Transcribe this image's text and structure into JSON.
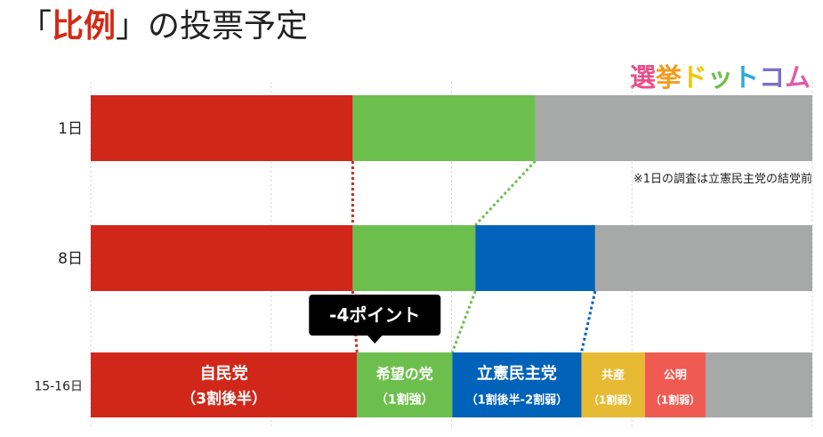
{
  "header": {
    "title_open": "「",
    "title_accent": "比例",
    "title_close": "」の投票予定",
    "logo_chars": [
      {
        "text": "選",
        "color": "#e8508a"
      },
      {
        "text": "挙",
        "color": "#f59a1c"
      },
      {
        "text": "ド",
        "color": "#f2c500"
      },
      {
        "text": "ッ",
        "color": "#6cc04a"
      },
      {
        "text": "ト",
        "color": "#2aa9e0"
      },
      {
        "text": "コ",
        "color": "#7b6fd0"
      },
      {
        "text": "ム",
        "color": "#e25ba9"
      }
    ],
    "note": "※1日の調査は立憲民主党の結党前"
  },
  "chart_data": {
    "type": "bar",
    "orientation": "horizontal",
    "stacked": true,
    "normalized": true,
    "categories": [
      "1日",
      "8日",
      "15-16日"
    ],
    "grid": true,
    "series": [
      {
        "key": "ldp",
        "color": "#d0271a",
        "values": [
          36.3,
          36.3,
          36.9
        ],
        "labels": [
          null,
          null,
          {
            "line1": "自民党",
            "line2": "（3割後半）"
          }
        ]
      },
      {
        "key": "kibou",
        "color": "#6dbf4d",
        "values": [
          25.3,
          17.0,
          13.2
        ],
        "labels": [
          null,
          null,
          {
            "line1": "希望の党",
            "line2": "（1割強）"
          }
        ]
      },
      {
        "key": "cdp",
        "color": "#0062b9",
        "values": [
          0,
          16.6,
          17.9
        ],
        "labels": [
          null,
          null,
          {
            "line1": "立憲民主党",
            "line2": "（1割後半-2割弱）"
          }
        ]
      },
      {
        "key": "jcp",
        "color": "#e6bb33",
        "values": [
          0,
          0,
          8.8
        ],
        "labels": [
          null,
          null,
          {
            "line1": "共産",
            "line2": "（1割弱）"
          }
        ]
      },
      {
        "key": "komei",
        "color": "#ef5a51",
        "values": [
          0,
          0,
          8.4
        ],
        "labels": [
          null,
          null,
          {
            "line1": "公明",
            "line2": "（1割弱）"
          }
        ]
      },
      {
        "key": "other",
        "color": "#a7a9a8",
        "values": [
          38.4,
          30.1,
          14.8
        ],
        "labels": [
          null,
          null,
          null
        ]
      }
    ],
    "annotation": {
      "text": "-4ポイント",
      "series": "kibou",
      "category": "15-16日"
    },
    "connectors": [
      {
        "from": "1日",
        "to": "8日",
        "after_series": "ldp",
        "color": "#d0271a"
      },
      {
        "from": "8日",
        "to": "15-16日",
        "after_series": "ldp",
        "color": "#d0271a"
      },
      {
        "from": "1日",
        "to": "8日",
        "after_series": "kibou",
        "color": "#6dbf4d"
      },
      {
        "from": "8日",
        "to": "15-16日",
        "after_series": "kibou",
        "color": "#6dbf4d"
      },
      {
        "from": "8日",
        "to": "15-16日",
        "after_series": "cdp",
        "color": "#0062b9"
      }
    ]
  }
}
